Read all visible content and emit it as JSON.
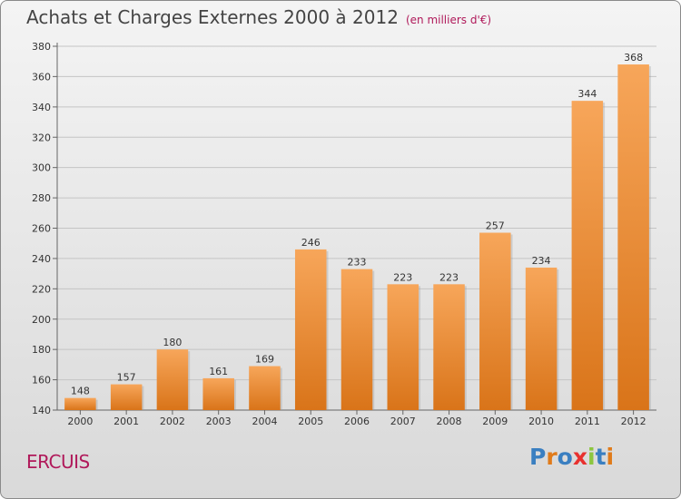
{
  "header": {
    "title": "Achats et Charges Externes 2000 à 2012",
    "unit": "(en milliers d'€)"
  },
  "footer": {
    "place": "ERCUIS",
    "logo_text": "Proxiti",
    "logo_colors": [
      "#3a7fc1",
      "#e07b1a",
      "#3a7fc1",
      "#e8312f",
      "#8cc63f",
      "#3a7fc1",
      "#e07b1a"
    ]
  },
  "chart_data": {
    "type": "bar",
    "title": "Achats et Charges Externes 2000 à 2012",
    "xlabel": "",
    "ylabel": "",
    "categories": [
      "2000",
      "2001",
      "2002",
      "2003",
      "2004",
      "2005",
      "2006",
      "2007",
      "2008",
      "2009",
      "2010",
      "2011",
      "2012"
    ],
    "values": [
      148,
      157,
      180,
      161,
      169,
      246,
      233,
      223,
      223,
      257,
      234,
      344,
      368
    ],
    "ylim": [
      140,
      380
    ],
    "yticks": [
      140,
      160,
      180,
      200,
      220,
      240,
      260,
      280,
      300,
      320,
      340,
      360,
      380
    ],
    "grid": true,
    "bar_color_top": "#f7a65a",
    "bar_color_bottom": "#d97419"
  }
}
